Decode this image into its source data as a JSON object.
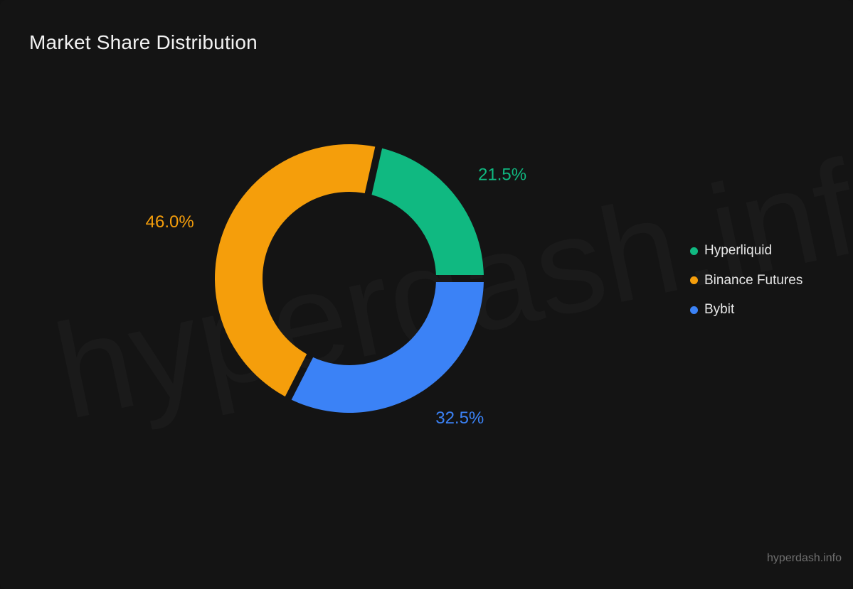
{
  "title": "Market Share Distribution",
  "watermark": "hyperdash.info",
  "footer_text": "hyperdash.info",
  "colors": {
    "background": "#141414",
    "hyperliquid": "#10b981",
    "binance": "#f59e0b",
    "bybit": "#3b82f6"
  },
  "chart_data": {
    "type": "pie",
    "style": "donut",
    "title": "Market Share Distribution",
    "legend_position": "right",
    "slices": [
      {
        "name": "Hyperliquid",
        "value": 21.5,
        "label": "21.5%",
        "color": "#10b981"
      },
      {
        "name": "Bybit",
        "value": 32.5,
        "label": "32.5%",
        "color": "#3b82f6"
      },
      {
        "name": "Binance Futures",
        "value": 46.0,
        "label": "46.0%",
        "color": "#f59e0b"
      }
    ]
  },
  "legend": {
    "items": [
      {
        "label": "Hyperliquid",
        "color": "#10b981"
      },
      {
        "label": "Binance Futures",
        "color": "#f59e0b"
      },
      {
        "label": "Bybit",
        "color": "#3b82f6"
      }
    ]
  }
}
